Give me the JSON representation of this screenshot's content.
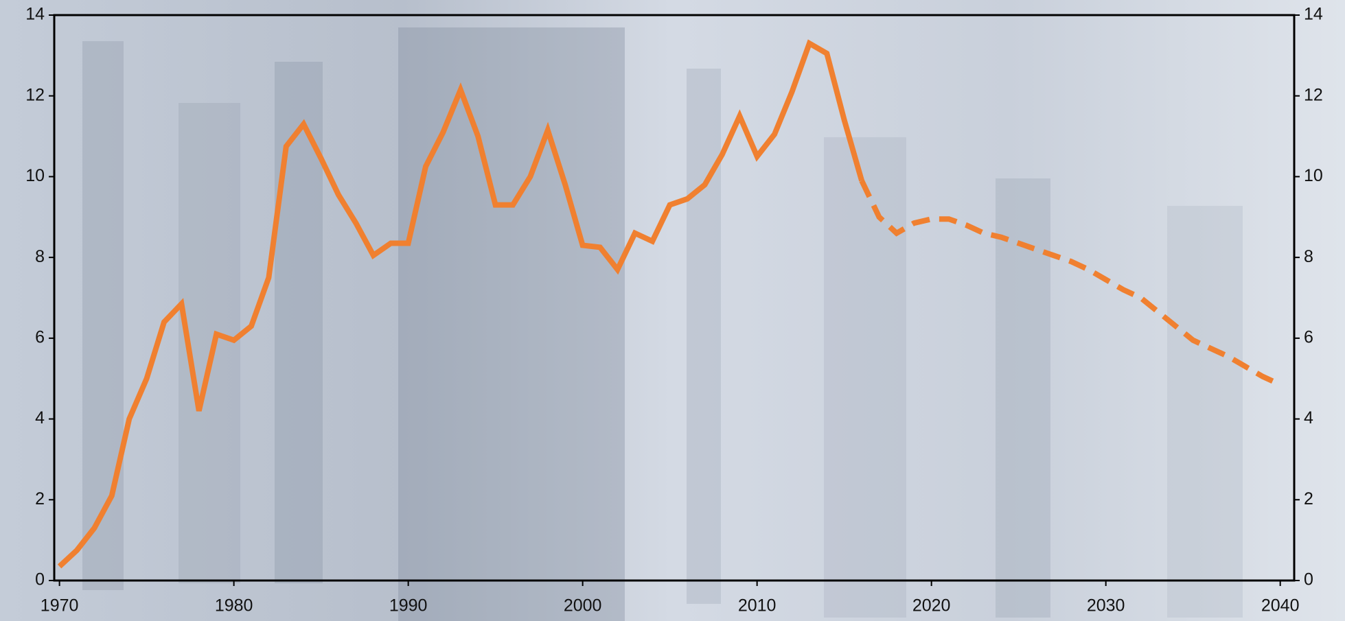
{
  "chart_data": {
    "type": "line",
    "x": [
      1970,
      1971,
      1972,
      1973,
      1974,
      1975,
      1976,
      1977,
      1978,
      1979,
      1980,
      1981,
      1982,
      1983,
      1984,
      1985,
      1986,
      1987,
      1988,
      1989,
      1990,
      1991,
      1992,
      1993,
      1994,
      1995,
      1996,
      1997,
      1998,
      1999,
      2000,
      2001,
      2002,
      2003,
      2004,
      2005,
      2006,
      2007,
      2008,
      2009,
      2010,
      2011,
      2012,
      2013,
      2014,
      2015,
      2016,
      2017,
      2018,
      2019,
      2020,
      2021,
      2022,
      2023,
      2024,
      2025,
      2026,
      2027,
      2028,
      2029,
      2030,
      2031,
      2032,
      2033,
      2034,
      2035,
      2036,
      2037,
      2038,
      2039,
      2040
    ],
    "series": [
      {
        "color": "#f08030",
        "dashed": false,
        "values": [
          0.35,
          0.75,
          1.3,
          2.1,
          4.0,
          5.0,
          6.4,
          6.85,
          4.2,
          6.1,
          5.95,
          6.3,
          7.5,
          10.75,
          11.3,
          10.45,
          9.55,
          8.85,
          8.05,
          8.35,
          8.35,
          10.25,
          11.1,
          12.15,
          11.0,
          9.3,
          9.3,
          10.0,
          11.15,
          9.8,
          8.3,
          8.25,
          7.7,
          8.6,
          8.4,
          9.3,
          9.45,
          9.8,
          10.55,
          11.5,
          10.5,
          11.05,
          12.1,
          13.3,
          13.05,
          11.4,
          9.9,
          null,
          null,
          null,
          null,
          null,
          null,
          null,
          null,
          null,
          null,
          null,
          null,
          null,
          null,
          null,
          null,
          null,
          null,
          null,
          null,
          null,
          null,
          null,
          null
        ]
      },
      {
        "color": "#f08030",
        "dashed": true,
        "values": [
          null,
          null,
          null,
          null,
          null,
          null,
          null,
          null,
          null,
          null,
          null,
          null,
          null,
          null,
          null,
          null,
          null,
          null,
          null,
          null,
          null,
          null,
          null,
          null,
          null,
          null,
          null,
          null,
          null,
          null,
          null,
          null,
          null,
          null,
          null,
          null,
          null,
          null,
          null,
          null,
          null,
          null,
          null,
          null,
          null,
          null,
          9.9,
          9.0,
          8.6,
          8.85,
          8.95,
          8.95,
          8.8,
          8.6,
          8.5,
          8.35,
          8.2,
          8.05,
          7.9,
          7.7,
          7.45,
          7.2,
          7.0,
          6.65,
          6.3,
          5.95,
          5.75,
          5.55,
          5.3,
          5.05,
          4.85
        ]
      }
    ],
    "xlim": [
      1969.7,
      2040.8
    ],
    "xticks": [
      1970,
      1980,
      1990,
      2000,
      2010,
      2020,
      2030,
      2040
    ],
    "ylim": [
      0,
      14
    ],
    "yticks": [
      0,
      2,
      4,
      6,
      8,
      10,
      12,
      14
    ],
    "y2lim": [
      0,
      14
    ],
    "y2ticks": [
      0,
      2,
      4,
      6,
      8,
      10,
      12,
      14
    ]
  }
}
